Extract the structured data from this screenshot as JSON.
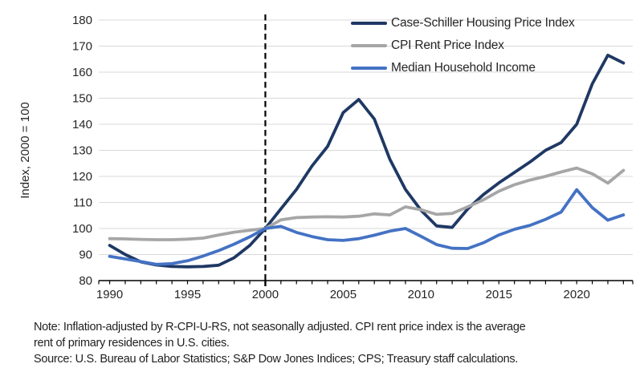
{
  "chart_data": {
    "type": "line",
    "title": "",
    "ylabel": "Index, 2000 = 100",
    "xlabel": "",
    "grid": "horizontal",
    "legend_position": "top-right-inside",
    "xlim": [
      1989.3,
      2023.6
    ],
    "ylim": [
      80,
      180
    ],
    "y_ticks": [
      80,
      90,
      100,
      110,
      120,
      130,
      140,
      150,
      160,
      170,
      180
    ],
    "x_labeled_ticks": [
      1990,
      1995,
      2000,
      2005,
      2010,
      2015,
      2020
    ],
    "reference_line_x": 2000,
    "x": [
      1990,
      1991,
      1992,
      1993,
      1994,
      1995,
      1996,
      1997,
      1998,
      1999,
      2000,
      2001,
      2002,
      2003,
      2004,
      2005,
      2006,
      2007,
      2008,
      2009,
      2010,
      2011,
      2012,
      2013,
      2014,
      2015,
      2016,
      2017,
      2018,
      2019,
      2020,
      2021,
      2022,
      2023
    ],
    "series": [
      {
        "name": "Case-Schiller Housing Price Index",
        "color": "#1f3864",
        "values": [
          93.5,
          90.0,
          87.2,
          86.0,
          85.4,
          85.3,
          85.4,
          85.9,
          88.8,
          93.5,
          100,
          107.5,
          115,
          124,
          131.5,
          144.5,
          149.5,
          142,
          126.5,
          115,
          107,
          101,
          100.4,
          107.5,
          113,
          117.5,
          121.5,
          125.5,
          130,
          133,
          140,
          155.5,
          166.5,
          163.5
        ]
      },
      {
        "name": "CPI Rent Price Index",
        "color": "#a6a6a6",
        "values": [
          96.1,
          96.0,
          95.8,
          95.7,
          95.7,
          95.9,
          96.3,
          97.5,
          98.6,
          99.3,
          100,
          103.3,
          104.2,
          104.4,
          104.5,
          104.4,
          104.7,
          105.6,
          105.2,
          108.3,
          107.2,
          105.4,
          105.8,
          108.3,
          111.0,
          114.3,
          116.8,
          118.6,
          120.0,
          121.7,
          123.2,
          121.0,
          117.4,
          122.3
        ]
      },
      {
        "name": "Median Household Income",
        "color": "#4472c4",
        "values": [
          89.3,
          88.3,
          87.3,
          86.2,
          86.5,
          87.6,
          89.4,
          91.5,
          94.0,
          96.8,
          100,
          100.8,
          98.5,
          96.9,
          95.7,
          95.4,
          96.1,
          97.4,
          99.0,
          100.0,
          97.0,
          93.8,
          92.4,
          92.3,
          94.5,
          97.5,
          99.7,
          101.2,
          103.5,
          106.3,
          114.9,
          108.0,
          103.2,
          105.2
        ]
      }
    ],
    "colors": {
      "gridline": "#d9d9d9",
      "axis": "#000000",
      "tick_label": "#262626",
      "reference_line": "#000000"
    }
  },
  "notes": {
    "line1": "Note: Inflation-adjusted by R-CPI-U-RS, not seasonally adjusted. CPI rent price index is the average",
    "line2": "rent of primary residences in U.S. cities.",
    "source": "Source: U.S. Bureau of Labor Statistics; S&P Dow Jones Indices; CPS; Treasury staff calculations."
  }
}
